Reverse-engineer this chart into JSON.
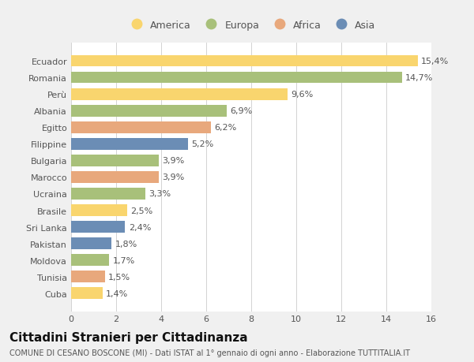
{
  "categories": [
    "Cuba",
    "Tunisia",
    "Moldova",
    "Pakistan",
    "Sri Lanka",
    "Brasile",
    "Ucraina",
    "Marocco",
    "Bulgaria",
    "Filippine",
    "Egitto",
    "Albania",
    "Perù",
    "Romania",
    "Ecuador"
  ],
  "values": [
    1.4,
    1.5,
    1.7,
    1.8,
    2.4,
    2.5,
    3.3,
    3.9,
    3.9,
    5.2,
    6.2,
    6.9,
    9.6,
    14.7,
    15.4
  ],
  "labels": [
    "1,4%",
    "1,5%",
    "1,7%",
    "1,8%",
    "2,4%",
    "2,5%",
    "3,3%",
    "3,9%",
    "3,9%",
    "5,2%",
    "6,2%",
    "6,9%",
    "9,6%",
    "14,7%",
    "15,4%"
  ],
  "continents": [
    "America",
    "Africa",
    "Europa",
    "Asia",
    "Asia",
    "America",
    "Europa",
    "Africa",
    "Europa",
    "Asia",
    "Africa",
    "Europa",
    "America",
    "Europa",
    "America"
  ],
  "colors": {
    "America": "#F9D56E",
    "Europa": "#A8C07A",
    "Africa": "#E8A87C",
    "Asia": "#6B8DB5"
  },
  "xlim": [
    0,
    16
  ],
  "xticks": [
    0,
    2,
    4,
    6,
    8,
    10,
    12,
    14,
    16
  ],
  "background_color": "#f0f0f0",
  "plot_bg_color": "#ffffff",
  "title": "Cittadini Stranieri per Cittadinanza",
  "subtitle": "COMUNE DI CESANO BOSCONE (MI) - Dati ISTAT al 1° gennaio di ogni anno - Elaborazione TUTTITALIA.IT",
  "title_fontsize": 11,
  "subtitle_fontsize": 7,
  "label_fontsize": 8,
  "tick_fontsize": 8,
  "legend_fontsize": 9,
  "legend_order": [
    "America",
    "Europa",
    "Africa",
    "Asia"
  ]
}
